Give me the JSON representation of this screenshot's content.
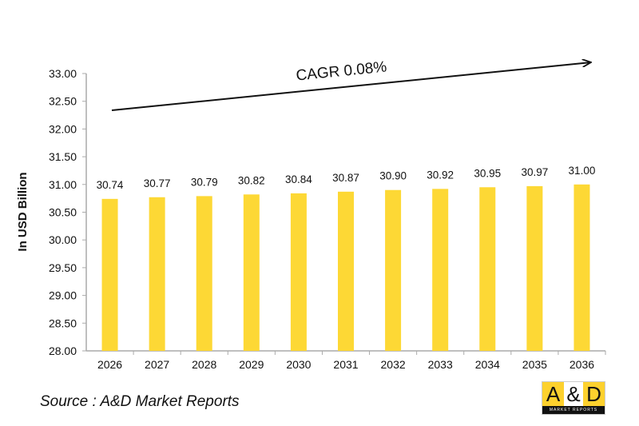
{
  "chart_data": {
    "type": "bar",
    "categories": [
      "2026",
      "2027",
      "2028",
      "2029",
      "2030",
      "2031",
      "2032",
      "2033",
      "2034",
      "2035",
      "2036"
    ],
    "values": [
      30.74,
      30.77,
      30.79,
      30.82,
      30.84,
      30.87,
      30.9,
      30.92,
      30.95,
      30.97,
      31.0
    ],
    "data_labels": [
      "30.74",
      "30.77",
      "30.79",
      "30.82",
      "30.84",
      "30.87",
      "30.90",
      "30.92",
      "30.95",
      "30.97",
      "31.00"
    ],
    "ylabel": "In USD Billion",
    "xlabel": "",
    "ylim": [
      28.0,
      33.0
    ],
    "yticks": [
      "28.00",
      "28.50",
      "29.00",
      "29.50",
      "30.00",
      "30.50",
      "31.00",
      "31.50",
      "32.00",
      "32.50",
      "33.00"
    ],
    "annotation": "CAGR 0.08%",
    "bar_color": "#fdd835",
    "grid": false,
    "legend": "none"
  },
  "source": "Source : A&D Market Reports",
  "logo": {
    "top": "A&D",
    "bottom": "MARKET REPORTS"
  }
}
